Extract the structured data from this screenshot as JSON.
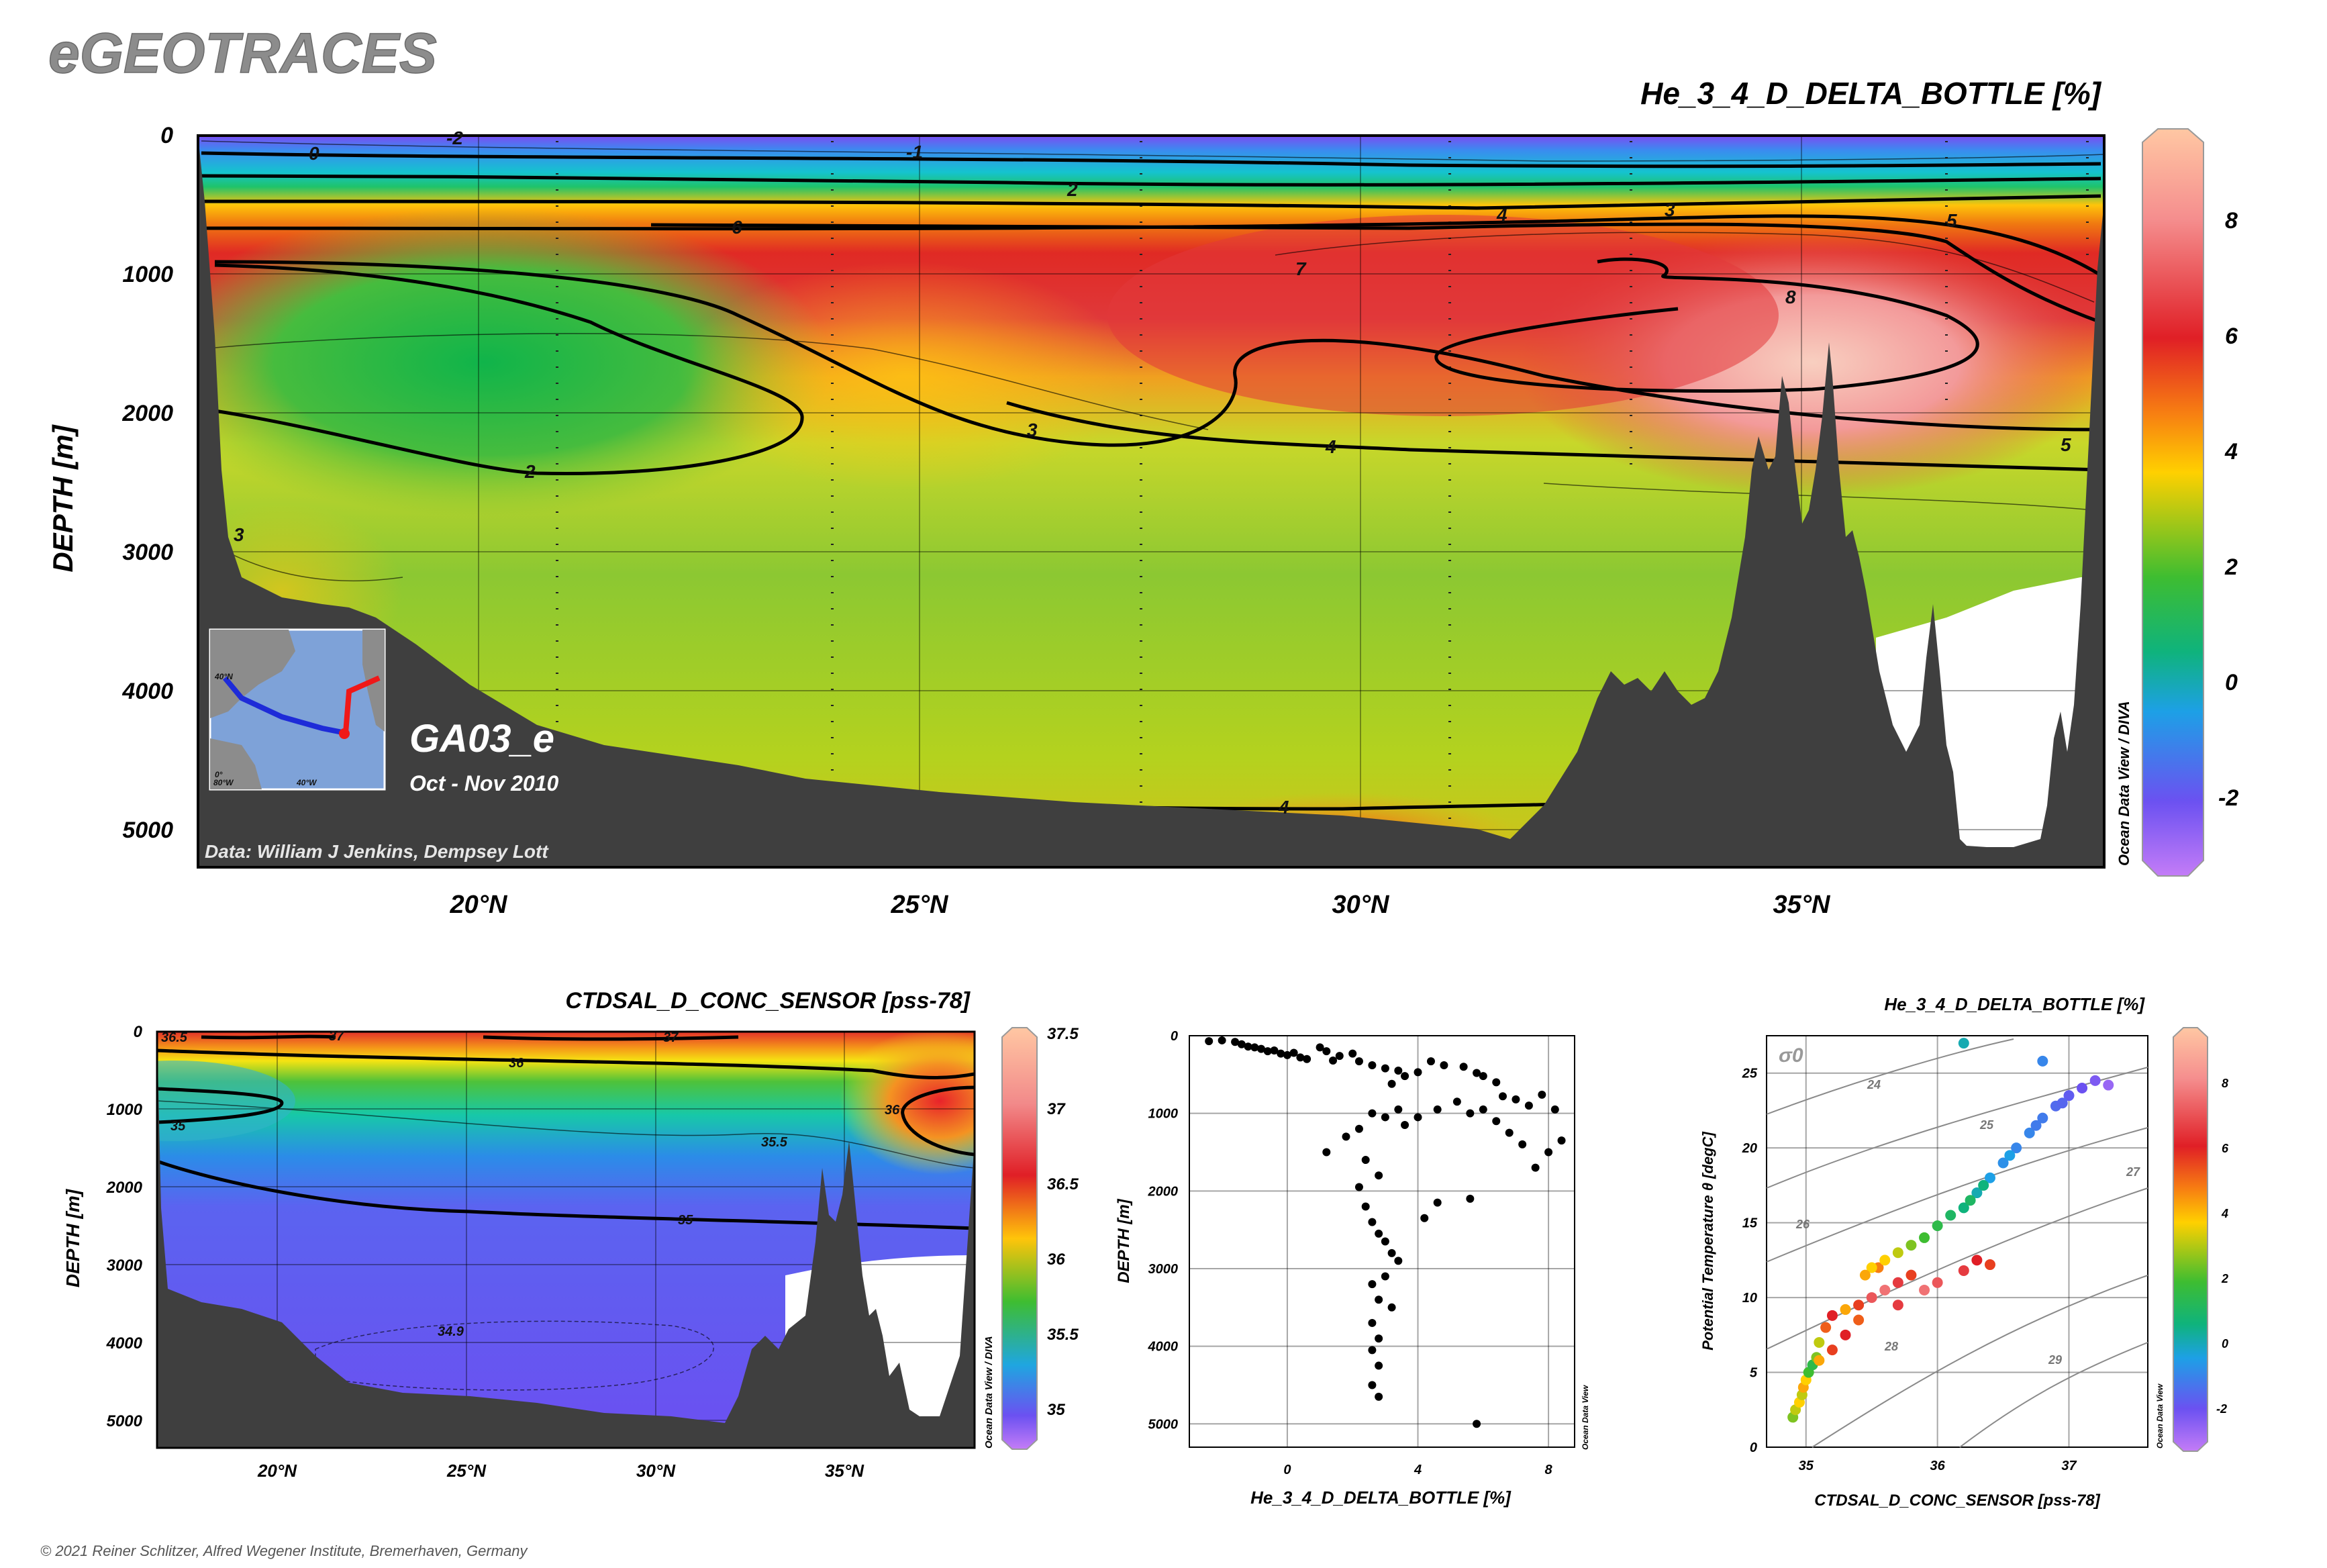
{
  "header": {
    "brand": "eGEOTRACES",
    "copyright": "© 2021 Reiner Schlitzer, Alfred Wegener Institute, Bremerhaven, Germany"
  },
  "main_section": {
    "title": "He_3_4_D_DELTA_BOTTLE [%]",
    "ylabel": "DEPTH [m]",
    "yticks": [
      "0",
      "1000",
      "2000",
      "3000",
      "4000",
      "5000"
    ],
    "xticks": [
      "20°N",
      "25°N",
      "30°N",
      "35°N"
    ],
    "cruise": "GA03_e",
    "period": "Oct - Nov 2010",
    "credit": "Data: William J Jenkins, Dempsey Lott",
    "colorbar_ticks": [
      "8",
      "6",
      "4",
      "2",
      "0",
      "-2"
    ],
    "colorbar_side_label": "Ocean Data View / DIVA",
    "contour_labels": [
      "0",
      "-1",
      "2",
      "-2",
      "4",
      "3",
      "5",
      "6",
      "7",
      "8",
      "2",
      "3",
      "4",
      "3",
      "4",
      "5"
    ],
    "inset": {
      "lat_label": "40°N",
      "lat_label2": "0°",
      "lon_label1": "80°W",
      "lon_label2": "40°W"
    }
  },
  "salinity_section": {
    "title": "CTDSAL_D_CONC_SENSOR [pss-78]",
    "ylabel": "DEPTH [m]",
    "yticks": [
      "0",
      "1000",
      "2000",
      "3000",
      "4000",
      "5000"
    ],
    "xticks": [
      "20°N",
      "25°N",
      "30°N",
      "35°N"
    ],
    "colorbar_ticks": [
      "37.5",
      "37",
      "36.5",
      "36",
      "35.5",
      "35"
    ],
    "colorbar_side_label": "Ocean Data View / DIVA",
    "contour_labels": [
      "36.5",
      "37",
      "37",
      "36",
      "35",
      "35.5",
      "36",
      "35",
      "34.9"
    ]
  },
  "profile_plot": {
    "xlabel": "He_3_4_D_DELTA_BOTTLE [%]",
    "ylabel": "DEPTH [m]",
    "xticks": [
      "0",
      "4",
      "8"
    ],
    "yticks": [
      "0",
      "1000",
      "2000",
      "3000",
      "4000",
      "5000"
    ],
    "side_label": "Ocean Data View"
  },
  "ts_plot": {
    "title": "He_3_4_D_DELTA_BOTTLE [%]",
    "xlabel": "CTDSAL_D_CONC_SENSOR [pss-78]",
    "ylabel": "Potential Temperature θ [degC]",
    "xticks": [
      "35",
      "36",
      "37"
    ],
    "yticks": [
      "0",
      "5",
      "10",
      "15",
      "20",
      "25"
    ],
    "sigma_label": "σ0",
    "sigma_labels": [
      "24",
      "25",
      "26",
      "27",
      "28",
      "29"
    ],
    "colorbar_ticks": [
      "8",
      "6",
      "4",
      "2",
      "0",
      "-2"
    ],
    "colorbar_side_label": "Ocean Data View"
  },
  "chart_data": [
    {
      "type": "heatmap",
      "title": "He_3_4_D_DELTA_BOTTLE [%]",
      "xlabel": "",
      "ylabel": "DEPTH [m]",
      "x_range_degN": [
        16.8,
        38.5
      ],
      "y_range_m": [
        0,
        5300
      ],
      "y_inverted": true,
      "colorbar_range": [
        -3,
        9.5
      ],
      "contour_levels": [
        -2,
        -1,
        0,
        2,
        3,
        4,
        5,
        6,
        7,
        8
      ],
      "colors": {
        "low": "#9a5cff",
        "mid": "#26b34a",
        "high": "#ffc9a6"
      }
    },
    {
      "type": "heatmap",
      "title": "CTDSAL_D_CONC_SENSOR [pss-78]",
      "xlabel": "",
      "ylabel": "DEPTH [m]",
      "x_range_degN": [
        16.8,
        38.5
      ],
      "y_range_m": [
        0,
        5300
      ],
      "y_inverted": true,
      "colorbar_range": [
        34.8,
        37.5
      ],
      "contour_levels": [
        34.9,
        35,
        35.5,
        36,
        36.5,
        37
      ]
    },
    {
      "type": "scatter",
      "title": "",
      "xlabel": "He_3_4_D_DELTA_BOTTLE [%]",
      "ylabel": "DEPTH [m]",
      "xlim": [
        -3,
        8.8
      ],
      "ylim": [
        5300,
        0
      ],
      "points": [
        [
          -2.4,
          70
        ],
        [
          -2.0,
          60
        ],
        [
          -1.6,
          80
        ],
        [
          -1.4,
          110
        ],
        [
          -1.2,
          140
        ],
        [
          -1.0,
          150
        ],
        [
          -0.8,
          170
        ],
        [
          -0.6,
          200
        ],
        [
          -0.4,
          190
        ],
        [
          -0.2,
          230
        ],
        [
          0.0,
          250
        ],
        [
          0.2,
          220
        ],
        [
          0.4,
          280
        ],
        [
          0.6,
          300
        ],
        [
          1.0,
          150
        ],
        [
          1.2,
          200
        ],
        [
          1.4,
          320
        ],
        [
          1.6,
          260
        ],
        [
          2.0,
          230
        ],
        [
          2.2,
          330
        ],
        [
          2.6,
          380
        ],
        [
          3.0,
          420
        ],
        [
          3.4,
          450
        ],
        [
          3.6,
          520
        ],
        [
          3.2,
          620
        ],
        [
          4.0,
          470
        ],
        [
          4.4,
          330
        ],
        [
          4.8,
          380
        ],
        [
          5.4,
          400
        ],
        [
          5.8,
          480
        ],
        [
          6.0,
          520
        ],
        [
          6.4,
          600
        ],
        [
          6.6,
          780
        ],
        [
          7.0,
          820
        ],
        [
          7.4,
          900
        ],
        [
          7.8,
          760
        ],
        [
          8.2,
          950
        ],
        [
          8.4,
          1350
        ],
        [
          8.0,
          1500
        ],
        [
          7.6,
          1700
        ],
        [
          7.2,
          1400
        ],
        [
          6.8,
          1250
        ],
        [
          6.4,
          1100
        ],
        [
          6.0,
          950
        ],
        [
          5.6,
          1000
        ],
        [
          5.2,
          850
        ],
        [
          4.6,
          950
        ],
        [
          4.0,
          1050
        ],
        [
          3.6,
          1150
        ],
        [
          3.4,
          950
        ],
        [
          3.0,
          1050
        ],
        [
          2.6,
          1000
        ],
        [
          2.2,
          1200
        ],
        [
          1.8,
          1300
        ],
        [
          1.2,
          1500
        ],
        [
          2.4,
          1600
        ],
        [
          2.8,
          1800
        ],
        [
          2.2,
          1950
        ],
        [
          2.4,
          2200
        ],
        [
          2.6,
          2400
        ],
        [
          2.8,
          2550
        ],
        [
          3.0,
          2650
        ],
        [
          3.2,
          2800
        ],
        [
          3.4,
          2900
        ],
        [
          3.0,
          3100
        ],
        [
          2.6,
          3200
        ],
        [
          2.8,
          3400
        ],
        [
          3.2,
          3500
        ],
        [
          2.6,
          3700
        ],
        [
          2.8,
          3900
        ],
        [
          2.6,
          4050
        ],
        [
          2.8,
          4250
        ],
        [
          2.6,
          4500
        ],
        [
          2.8,
          4650
        ],
        [
          4.6,
          2150
        ],
        [
          4.2,
          2350
        ],
        [
          5.6,
          2100
        ],
        [
          5.8,
          5000
        ]
      ]
    },
    {
      "type": "scatter",
      "title": "He_3_4_D_DELTA_BOTTLE [%]",
      "xlabel": "CTDSAL_D_CONC_SENSOR [pss-78]",
      "ylabel": "Potential Temperature θ [degC]",
      "xlim": [
        34.7,
        37.6
      ],
      "ylim": [
        0,
        27.5
      ],
      "sigma_isopycnals": [
        24,
        25,
        26,
        27,
        28,
        29
      ],
      "points": [
        [
          34.9,
          2.0,
          2.5
        ],
        [
          34.92,
          2.5,
          3.0
        ],
        [
          34.95,
          3.0,
          3.5
        ],
        [
          34.97,
          3.5,
          3.0
        ],
        [
          34.98,
          4.0,
          4.0
        ],
        [
          35.0,
          4.5,
          3.5
        ],
        [
          35.02,
          5.0,
          2.0
        ],
        [
          35.05,
          5.5,
          1.5
        ],
        [
          35.08,
          6.0,
          2.5
        ],
        [
          35.1,
          7.0,
          3.0
        ],
        [
          35.15,
          8.0,
          5.0
        ],
        [
          35.2,
          8.8,
          6.0
        ],
        [
          35.3,
          9.2,
          4.0
        ],
        [
          35.4,
          9.5,
          5.5
        ],
        [
          35.5,
          10.0,
          7.0
        ],
        [
          35.6,
          10.5,
          7.5
        ],
        [
          35.7,
          11.0,
          6.5
        ],
        [
          35.8,
          11.5,
          5.5
        ],
        [
          35.55,
          12.0,
          4.5
        ],
        [
          35.6,
          12.5,
          3.5
        ],
        [
          35.7,
          13.0,
          3.0
        ],
        [
          35.8,
          13.5,
          2.5
        ],
        [
          35.9,
          14.0,
          2.0
        ],
        [
          36.0,
          14.8,
          1.5
        ],
        [
          36.1,
          15.5,
          1.0
        ],
        [
          36.2,
          16.0,
          0.5
        ],
        [
          36.3,
          17.0,
          0.0
        ],
        [
          36.4,
          18.0,
          -0.5
        ],
        [
          36.5,
          19.0,
          -0.8
        ],
        [
          36.6,
          20.0,
          -1.0
        ],
        [
          36.7,
          21.0,
          -1.0
        ],
        [
          36.8,
          22.0,
          -1.2
        ],
        [
          36.9,
          22.8,
          -1.5
        ],
        [
          37.0,
          23.5,
          -1.8
        ],
        [
          37.1,
          24.0,
          -2.0
        ],
        [
          37.2,
          24.5,
          -2.2
        ],
        [
          36.3,
          12.5,
          6.0
        ],
        [
          36.4,
          12.2,
          5.5
        ],
        [
          36.2,
          11.8,
          6.5
        ],
        [
          36.0,
          11.0,
          7.0
        ],
        [
          35.9,
          10.5,
          7.5
        ],
        [
          35.7,
          9.5,
          6.5
        ],
        [
          35.4,
          8.5,
          5.0
        ],
        [
          35.3,
          7.5,
          6.0
        ],
        [
          35.2,
          6.5,
          5.5
        ],
        [
          35.1,
          5.8,
          4.0
        ],
        [
          35.5,
          12.0,
          3.5
        ],
        [
          35.45,
          11.5,
          4.0
        ],
        [
          36.25,
          16.5,
          1.0
        ],
        [
          36.35,
          17.5,
          0.5
        ],
        [
          36.55,
          19.5,
          -0.5
        ],
        [
          36.75,
          21.5,
          -1.2
        ],
        [
          36.95,
          23.0,
          -1.6
        ],
        [
          37.3,
          24.2,
          -2.5
        ],
        [
          36.8,
          25.8,
          -1.0
        ],
        [
          36.2,
          27.0,
          0.0
        ]
      ]
    }
  ]
}
